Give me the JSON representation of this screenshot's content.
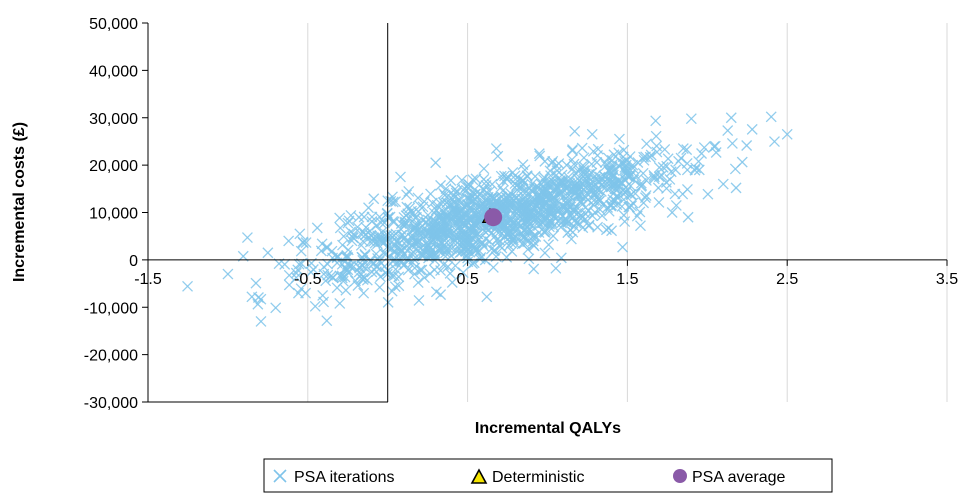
{
  "chart_data": {
    "type": "scatter",
    "xlabel": "Incremental QALYs",
    "ylabel": "Incremental costs (£)",
    "xlim": [
      -1.5,
      3.5
    ],
    "ylim": [
      -30000,
      50000
    ],
    "x_ticks": [
      -1.5,
      -0.5,
      0.5,
      1.5,
      2.5,
      3.5
    ],
    "x_tick_labels": [
      "-1.5",
      "-0.5",
      "0.5",
      "1.5",
      "2.5",
      "3.5"
    ],
    "y_ticks": [
      -30000,
      -20000,
      -10000,
      0,
      10000,
      20000,
      30000,
      40000,
      50000
    ],
    "y_tick_labels": [
      "-30,000",
      "-20,000",
      "-10,000",
      "0",
      "10,000",
      "20,000",
      "30,000",
      "40,000",
      "50,000"
    ],
    "grid": "vertical",
    "legend_position": "bottom",
    "colors": {
      "psa": "#7fc4ea",
      "deterministic_fill": "#f5e400",
      "average": "#8a5aa8",
      "grid": "#d9d9d9",
      "axis": "#000000"
    },
    "series": [
      {
        "name": "PSA iterations",
        "marker": "x",
        "points": [
          [
            -1.0,
            -3000
          ],
          [
            -0.85,
            -7800
          ],
          [
            -0.75,
            1500
          ],
          [
            -0.68,
            -800
          ],
          [
            -0.62,
            4000
          ],
          [
            -0.55,
            5500
          ],
          [
            -0.48,
            -2600
          ],
          [
            -0.4,
            -3000
          ],
          [
            -0.38,
            2500
          ],
          [
            -0.3,
            -9200
          ],
          [
            -0.25,
            500
          ],
          [
            -0.22,
            4800
          ],
          [
            -0.18,
            9000
          ],
          [
            -0.12,
            11000
          ],
          [
            -0.08,
            3500
          ],
          [
            -0.05,
            -5800
          ],
          [
            -0.02,
            7800
          ],
          [
            0.0,
            12500
          ],
          [
            0.05,
            -2000
          ],
          [
            0.08,
            17500
          ],
          [
            0.12,
            3000
          ],
          [
            0.18,
            9000
          ],
          [
            0.25,
            6000
          ],
          [
            0.3,
            20500
          ],
          [
            0.35,
            -1000
          ],
          [
            0.42,
            12000
          ],
          [
            0.5,
            3000
          ],
          [
            0.58,
            9500
          ],
          [
            0.62,
            -7800
          ],
          [
            0.68,
            23500
          ],
          [
            0.75,
            13000
          ],
          [
            0.8,
            17000
          ],
          [
            0.88,
            6000
          ],
          [
            0.95,
            11000
          ],
          [
            1.05,
            15000
          ],
          [
            1.12,
            20000
          ],
          [
            1.2,
            9000
          ],
          [
            1.28,
            26500
          ],
          [
            1.35,
            17000
          ],
          [
            1.45,
            25500
          ],
          [
            1.55,
            14000
          ],
          [
            1.62,
            24500
          ],
          [
            1.7,
            19500
          ],
          [
            1.78,
            10000
          ],
          [
            1.85,
            23500
          ],
          [
            1.88,
            9000
          ],
          [
            1.9,
            29800
          ],
          [
            1.95,
            19000
          ],
          [
            2.05,
            24000
          ],
          [
            2.1,
            16000
          ],
          [
            2.15,
            30000
          ],
          [
            2.18,
            15200
          ],
          [
            2.4,
            30200
          ],
          [
            2.5,
            26500
          ]
        ]
      },
      {
        "name": "Deterministic",
        "marker": "triangle",
        "points": [
          [
            0.64,
            9000
          ]
        ]
      },
      {
        "name": "PSA average",
        "marker": "circle",
        "points": [
          [
            0.66,
            9000
          ]
        ]
      }
    ]
  },
  "legend": {
    "psa_label": "PSA iterations",
    "deterministic_label": "Deterministic",
    "average_label": "PSA average"
  }
}
